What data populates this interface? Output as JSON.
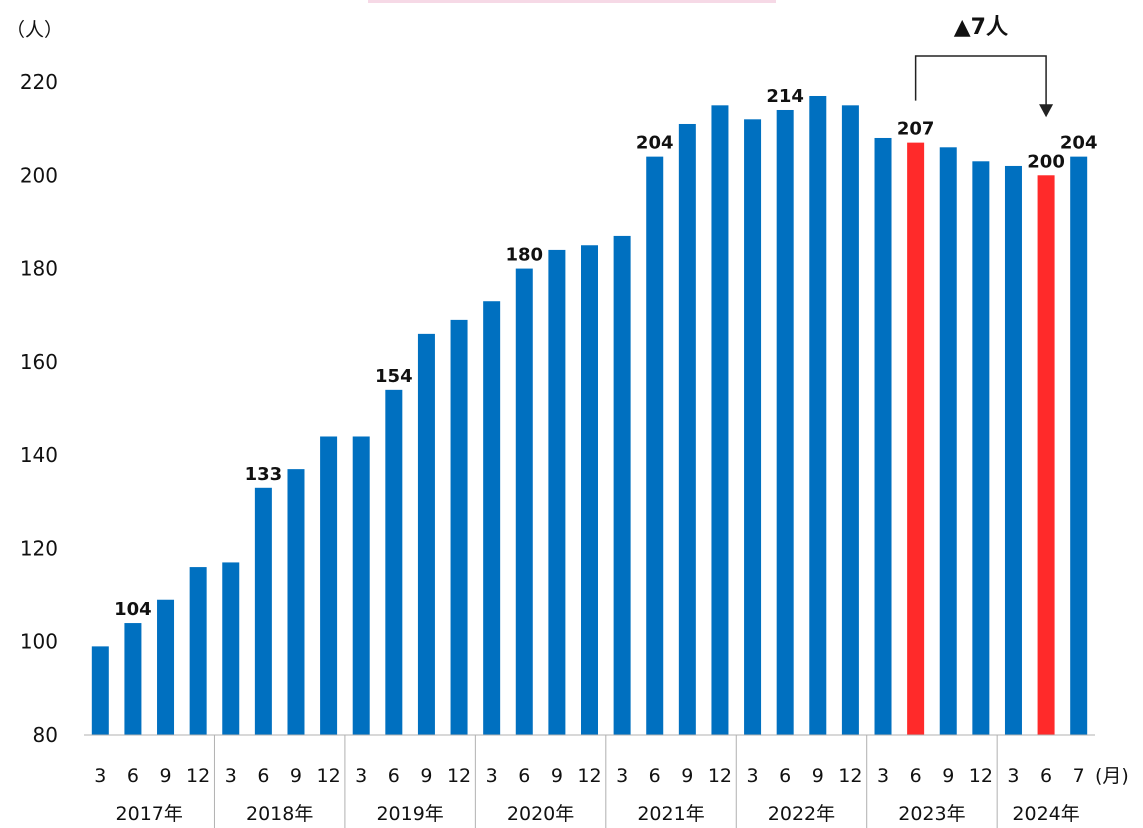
{
  "chart_data": {
    "type": "bar",
    "y_unit_label": "（人）",
    "x_unit_label": "(月)",
    "ylim": [
      80,
      220
    ],
    "yticks": [
      80,
      100,
      120,
      140,
      160,
      180,
      200,
      220
    ],
    "grid": false,
    "legend": "none",
    "colors": {
      "normal": "#0070c0",
      "highlight": "#ff2a2a"
    },
    "years": [
      "2017年",
      "2018年",
      "2019年",
      "2020年",
      "2021年",
      "2022年",
      "2023年",
      "2024年"
    ],
    "bars": [
      {
        "month": "3",
        "value": 99
      },
      {
        "month": "6",
        "value": 104,
        "label": "104"
      },
      {
        "month": "9",
        "value": 109
      },
      {
        "month": "12",
        "value": 116
      },
      {
        "month": "3",
        "value": 117
      },
      {
        "month": "6",
        "value": 133,
        "label": "133"
      },
      {
        "month": "9",
        "value": 137
      },
      {
        "month": "12",
        "value": 144
      },
      {
        "month": "3",
        "value": 144
      },
      {
        "month": "6",
        "value": 154,
        "label": "154"
      },
      {
        "month": "9",
        "value": 166
      },
      {
        "month": "12",
        "value": 169
      },
      {
        "month": "3",
        "value": 173
      },
      {
        "month": "6",
        "value": 180,
        "label": "180"
      },
      {
        "month": "9",
        "value": 184
      },
      {
        "month": "12",
        "value": 185
      },
      {
        "month": "3",
        "value": 187
      },
      {
        "month": "6",
        "value": 204,
        "label": "204"
      },
      {
        "month": "9",
        "value": 211
      },
      {
        "month": "12",
        "value": 215
      },
      {
        "month": "3",
        "value": 212
      },
      {
        "month": "6",
        "value": 214,
        "label": "214"
      },
      {
        "month": "9",
        "value": 217
      },
      {
        "month": "12",
        "value": 215
      },
      {
        "month": "3",
        "value": 208
      },
      {
        "month": "6",
        "value": 207,
        "label": "207",
        "highlight": true
      },
      {
        "month": "9",
        "value": 206
      },
      {
        "month": "12",
        "value": 203
      },
      {
        "month": "3",
        "value": 202
      },
      {
        "month": "6",
        "value": 200,
        "label": "200",
        "highlight": true
      },
      {
        "month": "7",
        "value": 204,
        "label": "204"
      }
    ],
    "annotation": {
      "text": "▲7人",
      "from_index": 25,
      "to_index": 29
    }
  }
}
